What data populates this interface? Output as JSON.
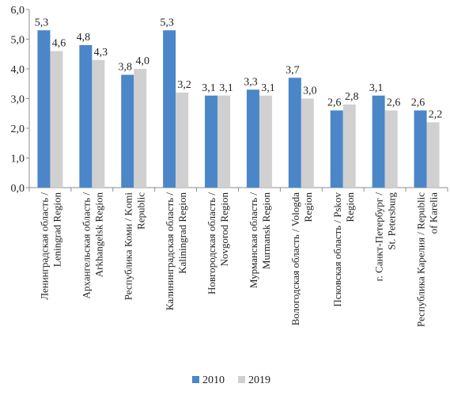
{
  "chart_data": {
    "type": "bar",
    "categories": [
      [
        "Ленинградская область /",
        "Leningrad Region"
      ],
      [
        "Архангельская область /",
        "Arkhangelsk Region"
      ],
      [
        "Республика Коми / Komi",
        "Republic"
      ],
      [
        "Калининградская область /",
        "Kaliningrad Region"
      ],
      [
        "Новгородская область /",
        "Novgorod Region"
      ],
      [
        "Мурманская область /",
        "Murmansk Region"
      ],
      [
        "Вологодская область / Vologda",
        "Region"
      ],
      [
        "Псковская область / Pskov",
        "Region"
      ],
      [
        "г. Санкт-Петербург /",
        "St. Petersburg"
      ],
      [
        "Республика Карелия / Republic",
        "of Karelia"
      ]
    ],
    "series": [
      {
        "name": "2010",
        "color": "#4a86c8",
        "values": [
          5.3,
          4.8,
          3.8,
          5.3,
          3.1,
          3.3,
          3.7,
          2.6,
          3.1,
          2.6
        ],
        "labels": [
          "5,3",
          "4,8",
          "3,8",
          "5,3",
          "3,1",
          "3,3",
          "3,7",
          "2,6",
          "3,1",
          "2,6"
        ]
      },
      {
        "name": "2019",
        "color": "#d0d0d0",
        "values": [
          4.6,
          4.3,
          4.0,
          3.2,
          3.1,
          3.1,
          3.0,
          2.8,
          2.6,
          2.2
        ],
        "labels": [
          "4,6",
          "4,3",
          "4,0",
          "3,2",
          "3,1",
          "3,1",
          "3,0",
          "2,8",
          "2,6",
          "2,2"
        ]
      }
    ],
    "ylim": [
      0,
      6
    ],
    "yticks": [
      0,
      1,
      2,
      3,
      4,
      5,
      6
    ],
    "ytick_labels": [
      "0,0",
      "1,0",
      "2,0",
      "3,0",
      "4,0",
      "5,0",
      "6,0"
    ],
    "grid": false,
    "legend_position": "bottom-center"
  }
}
